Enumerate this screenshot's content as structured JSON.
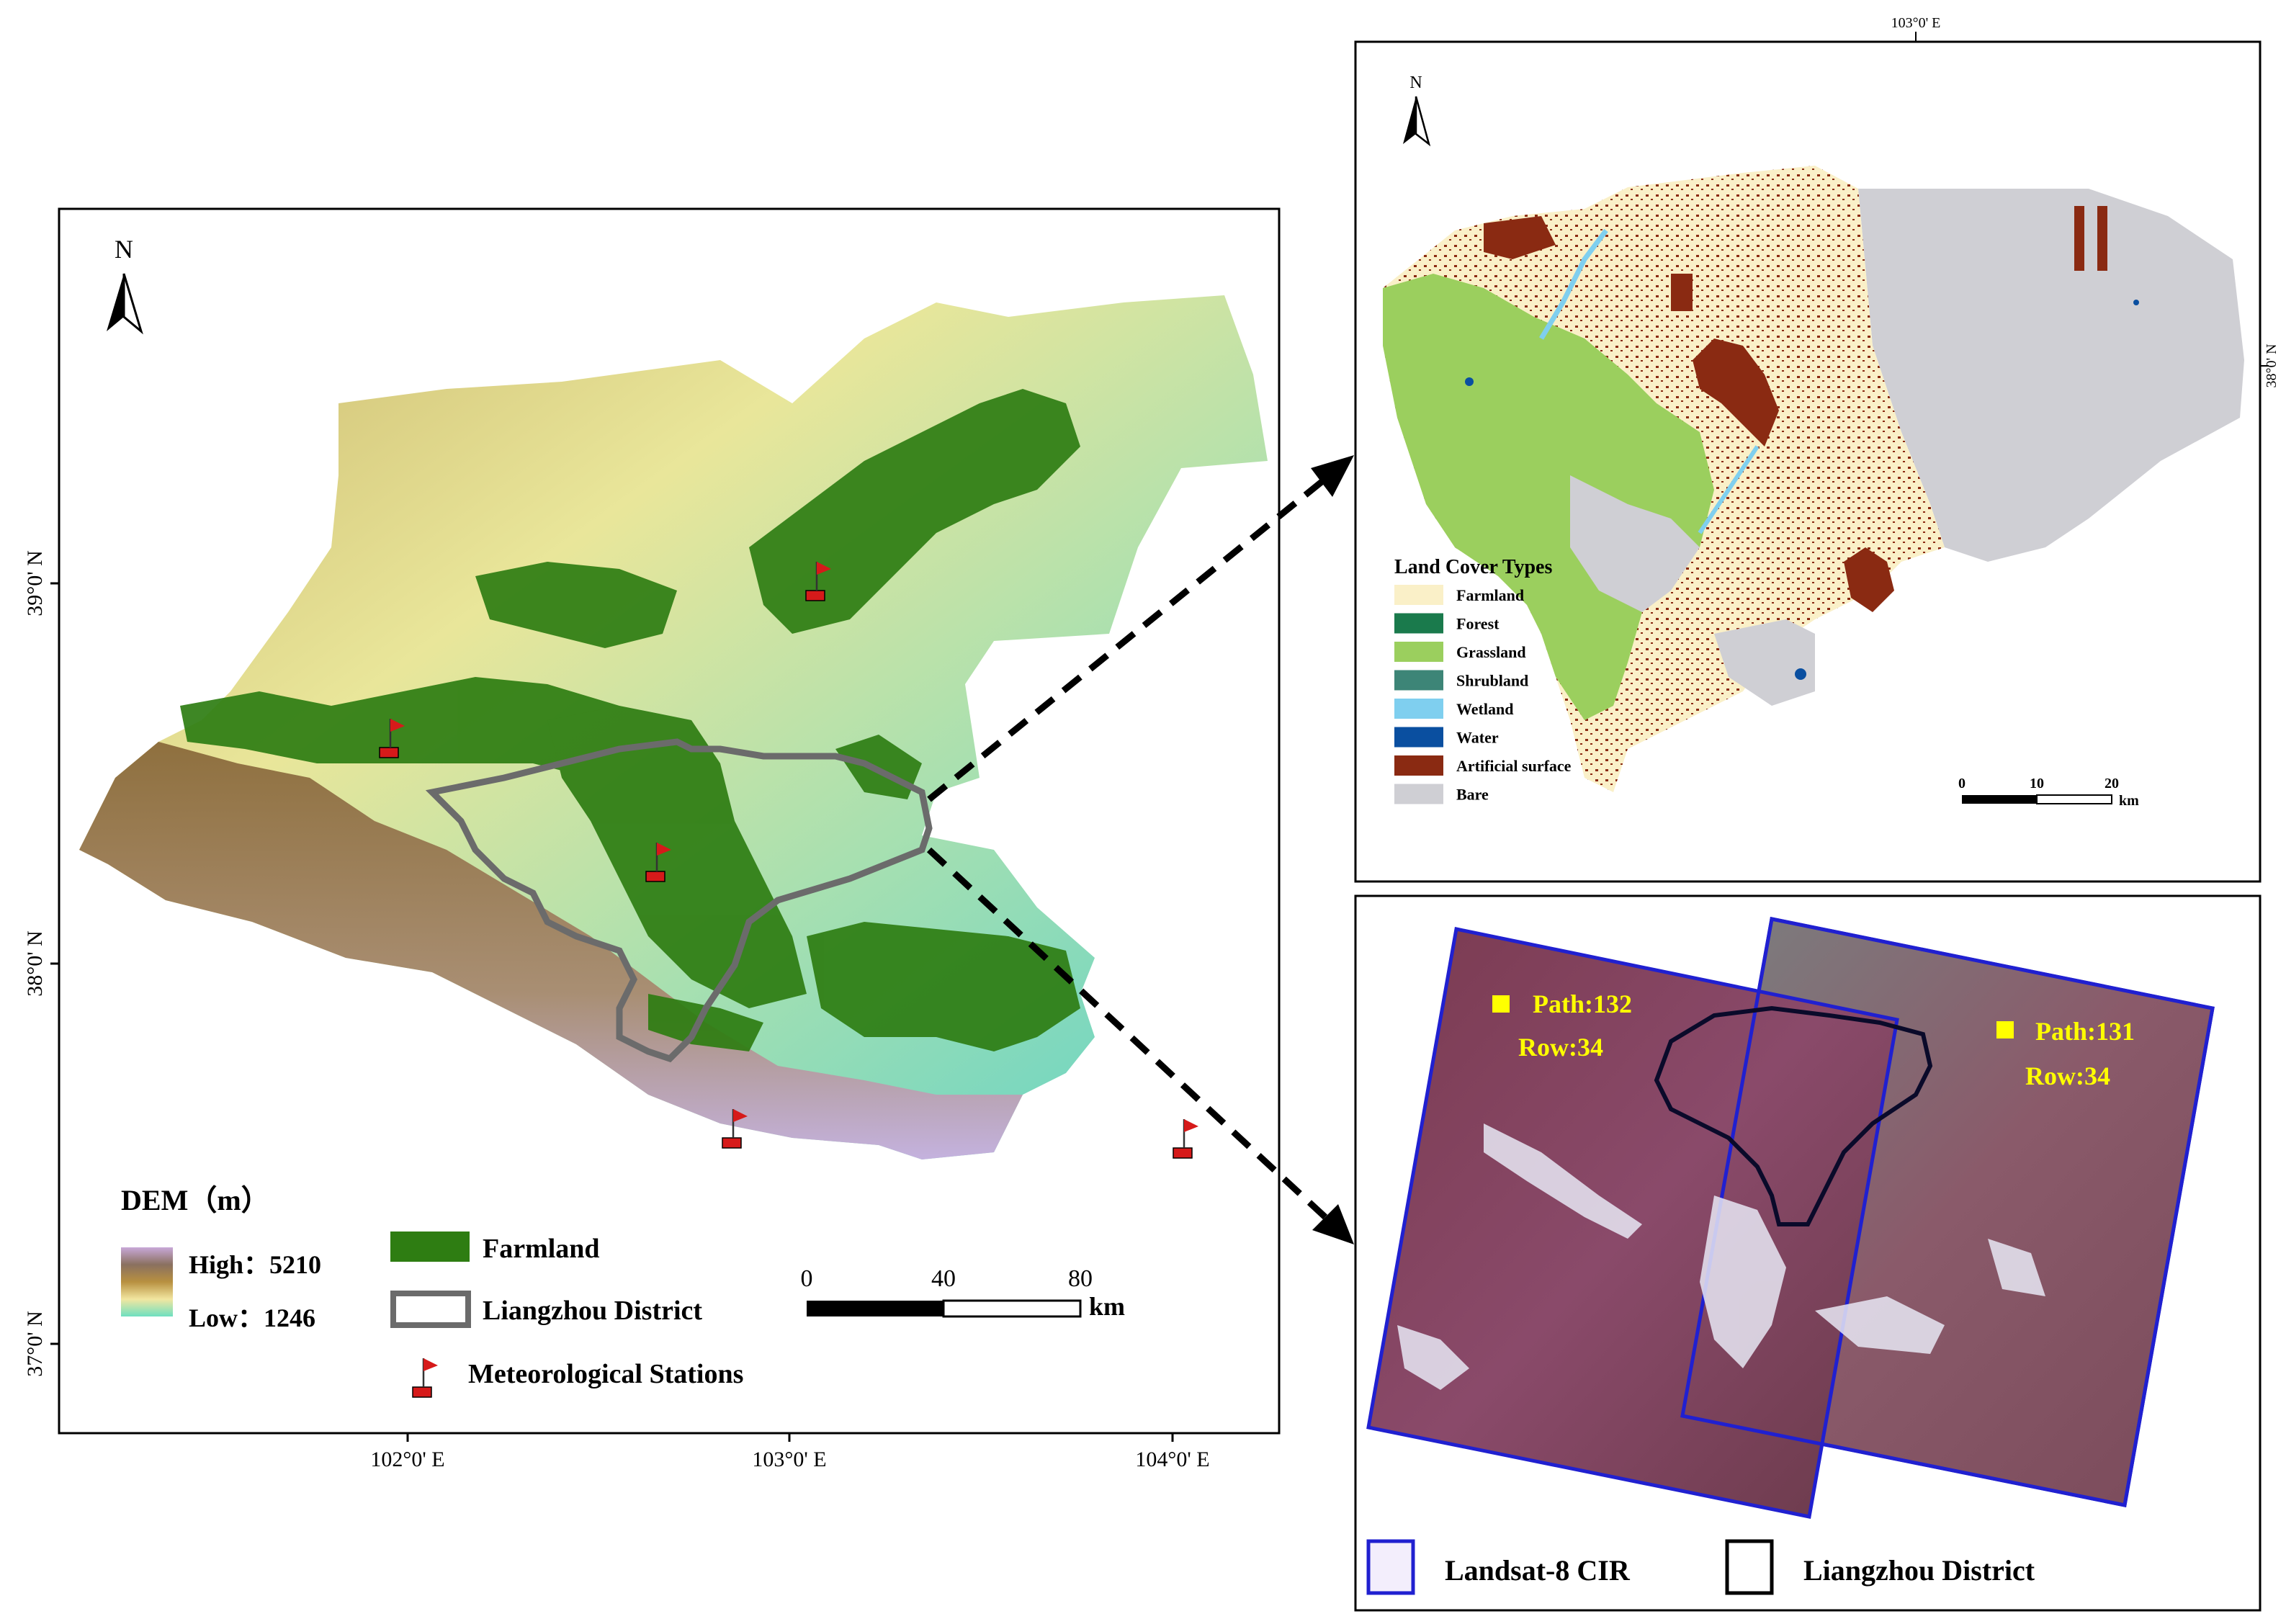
{
  "left_map": {
    "north_label": "N",
    "lat_ticks": [
      "39°0' N",
      "38°0' N",
      "37°0' N"
    ],
    "lon_ticks": [
      "102°0' E",
      "103°0' E",
      "104°0' E"
    ],
    "legend": {
      "dem_title": "DEM（m）",
      "high_label": "High：5210",
      "low_label": "Low：1246",
      "farmland": "Farmland",
      "district": "Liangzhou District",
      "stations": "Meteorological Stations"
    },
    "scale": {
      "ticks": [
        "0",
        "40",
        "80"
      ],
      "unit": "km"
    },
    "colors": {
      "farmland": "#2e7d12",
      "district_outline": "#6b6b6b",
      "station_flag": "#d61a1a"
    }
  },
  "landcover_map": {
    "north_label": "N",
    "lon_tick": "103°0' E",
    "lat_tick": "38°0' N",
    "legend_title": "Land Cover Types",
    "classes": [
      {
        "name": "Farmland",
        "color": "#faf0c8"
      },
      {
        "name": "Forest",
        "color": "#1a7a4c"
      },
      {
        "name": "Grassland",
        "color": "#9bcf5e"
      },
      {
        "name": "Shrubland",
        "color": "#3d8577"
      },
      {
        "name": "Wetland",
        "color": "#7fcfef"
      },
      {
        "name": "Water",
        "color": "#0a4fa0"
      },
      {
        "name": "Artificial surface",
        "color": "#8a2a12"
      },
      {
        "name": "Bare",
        "color": "#cfcfd4"
      }
    ],
    "scale": {
      "ticks": [
        "0",
        "10",
        "20"
      ],
      "unit": "km"
    }
  },
  "landsat_map": {
    "scene_132": {
      "path": "Path:132",
      "row": "Row:34"
    },
    "scene_131": {
      "path": "Path:131",
      "row": "Row:34"
    },
    "legend": {
      "landsat": "Landsat-8 CIR",
      "district": "Liangzhou District"
    },
    "colors": {
      "scene_outline": "#2020d0",
      "label_text": "#ffff00"
    }
  }
}
